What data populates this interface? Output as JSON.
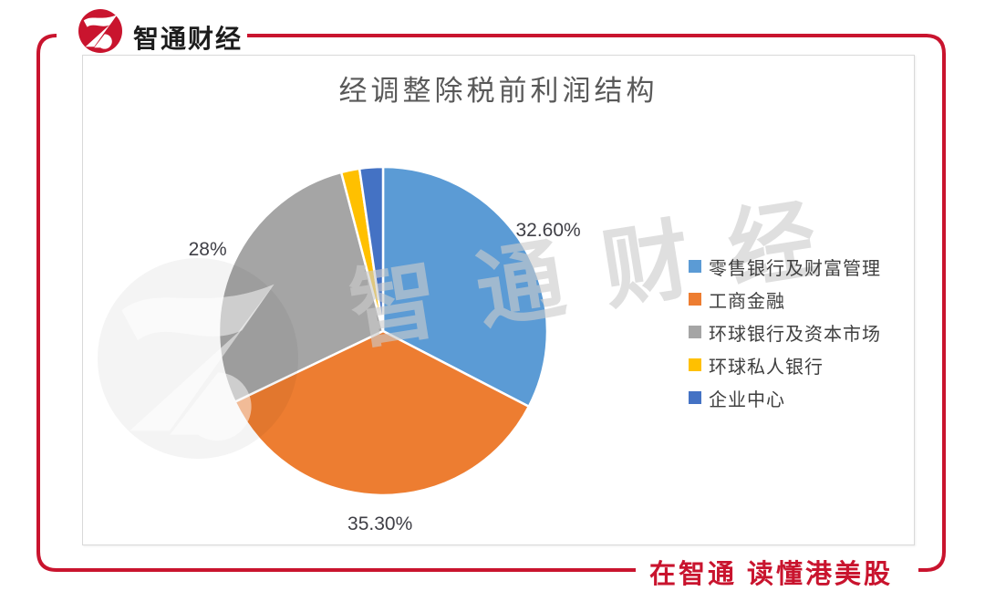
{
  "brand": {
    "logo_text": "智通财经",
    "tagline": "在智通 读懂港美股",
    "red": "#C9142E"
  },
  "chart_data": {
    "type": "pie",
    "title": "经调整除税前利润结构",
    "legend_position": "right",
    "direction": "clockwise",
    "start_angle_deg": 0,
    "slices": [
      {
        "label": "零售银行及财富管理",
        "value": 32.6,
        "data_label": "32.60%",
        "color": "#5B9BD5"
      },
      {
        "label": "工商金融",
        "value": 35.3,
        "data_label": "35.30%",
        "color": "#ED7D31"
      },
      {
        "label": "环球银行及资本市场",
        "value": 28.0,
        "data_label": "28%",
        "color": "#A5A5A5"
      },
      {
        "label": "环球私人银行",
        "value": 1.8,
        "data_label": "",
        "color": "#FFC000"
      },
      {
        "label": "企业中心",
        "value": 2.3,
        "data_label": "",
        "color": "#4472C4"
      }
    ]
  },
  "watermark": {
    "text": "智通财经"
  }
}
